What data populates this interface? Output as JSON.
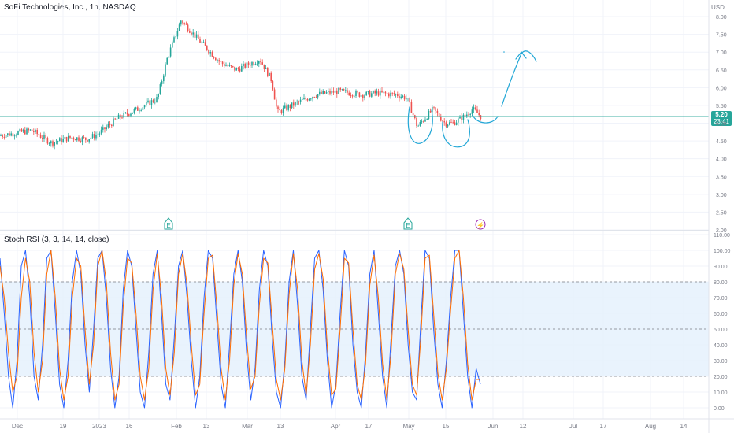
{
  "header": {
    "symbol_title": "SoFi Technologies, Inc., 1h, NASDAQ"
  },
  "price_axis": {
    "currency": "USD",
    "last_price": "5.20",
    "countdown": "23:41"
  },
  "indicator": {
    "title": "Stoch RSI (3, 3, 14, 14, close)"
  },
  "colors": {
    "up": "#26a69a",
    "down": "#ef5350",
    "k_line": "#2962ff",
    "d_line": "#ff6d00",
    "drawing": "#22a7d6",
    "band": "#e3f0fc",
    "grid": "#f0f3fa",
    "last_price_line": "#26a69a"
  },
  "events": [
    {
      "type": "earnings",
      "label": "E",
      "date": "Jan 30"
    },
    {
      "type": "earnings",
      "label": "E",
      "date": "May 1"
    },
    {
      "type": "dividend",
      "label": "⚡",
      "date": "May 25"
    }
  ],
  "chart_data": [
    {
      "type": "line",
      "title": "SoFi Technologies, Inc., 1h, NASDAQ",
      "xlabel": "",
      "ylabel": "USD",
      "x_ticks": [
        "Dec",
        "19",
        "2023",
        "16",
        "Feb",
        "13",
        "Mar",
        "13",
        "Apr",
        "17",
        "May",
        "15",
        "Jun",
        "12",
        "Jul",
        "17",
        "Aug",
        "14"
      ],
      "y_ticks": [
        2.0,
        2.5,
        3.0,
        3.5,
        4.0,
        4.5,
        5.0,
        5.5,
        6.0,
        6.5,
        7.0,
        7.5,
        8.0
      ],
      "ylim": [
        2.0,
        8.2
      ],
      "log_scale": false,
      "series": [
        {
          "x": [
            "Dec 1",
            "Dec 8",
            "Dec 15",
            "Dec 22",
            "Dec 29",
            "Jan 5",
            "Jan 12",
            "Jan 19",
            "Jan 26",
            "Jan 30",
            "Feb 1",
            "Feb 8",
            "Feb 15",
            "Feb 22",
            "Mar 1",
            "Mar 8",
            "Mar 13",
            "Mar 20",
            "Mar 27",
            "Apr 3",
            "Apr 10",
            "Apr 17",
            "Apr 24",
            "May 1",
            "May 3",
            "May 8",
            "May 12",
            "May 16",
            "May 19",
            "May 22",
            "May 25"
          ],
          "values": [
            4.65,
            4.8,
            4.45,
            4.6,
            4.55,
            4.7,
            5.15,
            5.4,
            5.7,
            6.8,
            7.9,
            7.4,
            6.7,
            6.5,
            6.8,
            6.2,
            5.3,
            5.6,
            5.8,
            5.9,
            5.8,
            5.85,
            5.8,
            5.7,
            4.9,
            5.4,
            5.0,
            5.0,
            5.2,
            5.4,
            5.2
          ]
        }
      ],
      "last_price": 5.2
    },
    {
      "type": "line",
      "title": "Stoch RSI (3, 3, 14, 14, close)",
      "y_ticks": [
        0.0,
        10.0,
        20.0,
        30.0,
        40.0,
        50.0,
        60.0,
        70.0,
        80.0,
        90.0,
        100.0,
        110.0
      ],
      "ylim": [
        -5,
        110
      ],
      "bands": {
        "upper": 80,
        "middle": 50,
        "lower": 20
      },
      "series": [
        {
          "name": "%K",
          "color": "#2962ff",
          "values": [
            95,
            60,
            20,
            0,
            30,
            90,
            100,
            70,
            20,
            5,
            40,
            95,
            100,
            60,
            15,
            0,
            30,
            80,
            100,
            85,
            40,
            10,
            50,
            95,
            100,
            70,
            25,
            0,
            20,
            75,
            100,
            90,
            50,
            10,
            0,
            35,
            85,
            100,
            60,
            15,
            5,
            45,
            90,
            100,
            70,
            30,
            0,
            20,
            70,
            100,
            95,
            55,
            15,
            0,
            40,
            85,
            100,
            80,
            35,
            5,
            25,
            75,
            100,
            90,
            45,
            10,
            0,
            30,
            80,
            100,
            65,
            20,
            5,
            50,
            95,
            100,
            75,
            30,
            0,
            15,
            60,
            100,
            90,
            40,
            10,
            0,
            35,
            85,
            100,
            60,
            20,
            0,
            45,
            90,
            100,
            85,
            40,
            10,
            5,
            55,
            100,
            95,
            50,
            15,
            0,
            30,
            70,
            100,
            100,
            60,
            20,
            0,
            25,
            15
          ]
        },
        {
          "name": "%D",
          "color": "#ff6d00",
          "values": [
            90,
            70,
            35,
            10,
            20,
            70,
            95,
            80,
            35,
            10,
            30,
            85,
            100,
            70,
            25,
            5,
            20,
            70,
            95,
            90,
            50,
            15,
            40,
            90,
            100,
            80,
            35,
            5,
            15,
            65,
            95,
            92,
            60,
            20,
            5,
            25,
            75,
            98,
            70,
            25,
            8,
            35,
            85,
            98,
            78,
            40,
            8,
            15,
            60,
            95,
            97,
            65,
            25,
            5,
            30,
            78,
            98,
            85,
            45,
            12,
            20,
            65,
            95,
            92,
            55,
            18,
            5,
            25,
            72,
            98,
            75,
            30,
            8,
            40,
            88,
            98,
            82,
            38,
            8,
            12,
            50,
            95,
            92,
            50,
            15,
            5,
            28,
            78,
            97,
            70,
            28,
            5,
            35,
            85,
            98,
            88,
            50,
            15,
            8,
            45,
            95,
            97,
            60,
            22,
            5,
            25,
            62,
            95,
            100,
            70,
            28,
            5,
            18,
            18
          ]
        }
      ]
    }
  ]
}
